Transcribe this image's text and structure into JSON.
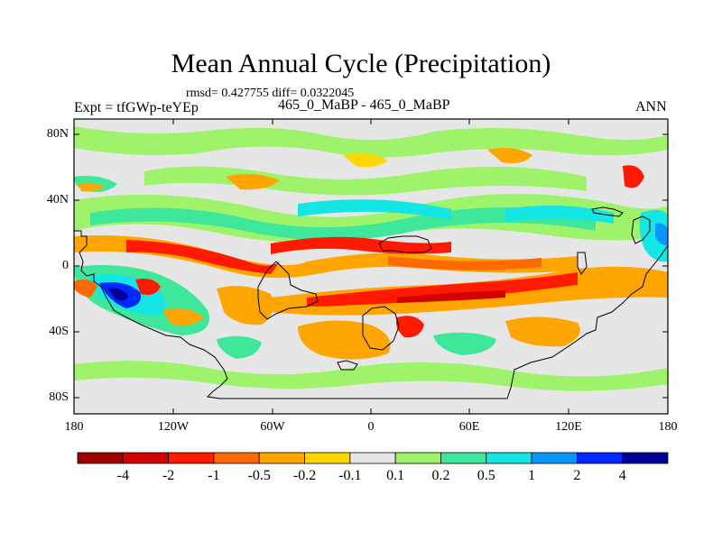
{
  "title": "Mean Annual Cycle (Precipitation)",
  "stats_line": "rmsd= 0.427755  diff= 0.0322045",
  "subtitle": "465_0_MaBP - 465_0_MaBP",
  "expt_label": "Expt = tfGWp-teYEp",
  "season": "ANN",
  "lat_labels": [
    "80N",
    "40N",
    "0",
    "40S",
    "80S"
  ],
  "lon_labels": [
    "180",
    "120W",
    "60W",
    "0",
    "60E",
    "120E",
    "180"
  ],
  "colorbar": {
    "labels": [
      "-4",
      "-2",
      "-1",
      "-0.5",
      "-0.2",
      "-0.1",
      "0.1",
      "0.2",
      "0.5",
      "1",
      "2",
      "4"
    ],
    "colors": [
      "#a00000",
      "#d20000",
      "#ff1a00",
      "#ff6a00",
      "#ffa500",
      "#ffd700",
      "#e6e6e6",
      "#9ef36b",
      "#3ee79a",
      "#14e6e6",
      "#0a96ff",
      "#0028ff",
      "#000096"
    ]
  },
  "colors": {
    "background": "#e6e6e6",
    "frame": "#000000"
  }
}
